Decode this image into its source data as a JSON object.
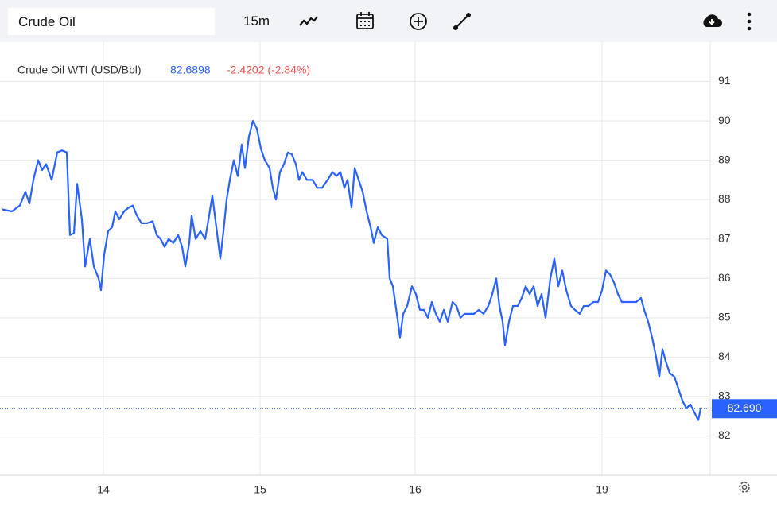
{
  "toolbar": {
    "search": "Crude Oil",
    "interval": "15m"
  },
  "chart_data": {
    "type": "line",
    "title": "Crude Oil WTI (USD/Bbl)",
    "last_price": "82.6898",
    "change": "-2.4202 (-2.84%)",
    "last_value": {
      "value": 82.69,
      "label": "82.690"
    },
    "xlim": [
      0,
      893
    ],
    "ylim": [
      81,
      92
    ],
    "xticks": [
      {
        "value": 130,
        "label": "14"
      },
      {
        "value": 327,
        "label": "15"
      },
      {
        "value": 522,
        "label": "16"
      },
      {
        "value": 757,
        "label": "19"
      }
    ],
    "yticks": [
      82,
      83,
      84,
      85,
      86,
      87,
      88,
      89,
      90,
      91
    ],
    "grid": true,
    "series": [
      {
        "color": "#2962ff",
        "x": [
          3,
          15,
          25,
          32,
          37,
          42,
          48,
          53,
          58,
          65,
          72,
          78,
          84,
          88,
          93,
          97,
          103,
          107,
          113,
          118,
          124,
          127,
          131,
          136,
          141,
          145,
          150,
          156,
          162,
          167,
          172,
          178,
          185,
          192,
          197,
          202,
          207,
          212,
          218,
          224,
          229,
          233,
          238,
          241,
          246,
          252,
          258,
          263,
          267,
          272,
          277,
          281,
          285,
          289,
          294,
          299,
          304,
          308,
          313,
          318,
          323,
          328,
          333,
          339,
          343,
          347,
          352,
          357,
          362,
          367,
          372,
          376,
          380,
          386,
          393,
          399,
          405,
          412,
          418,
          423,
          428,
          433,
          437,
          442,
          446,
          451,
          456,
          461,
          466,
          470,
          475,
          480,
          487,
          490,
          494,
          499,
          503,
          507,
          512,
          518,
          523,
          528,
          533,
          538,
          543,
          548,
          553,
          558,
          563,
          569,
          574,
          579,
          584,
          590,
          596,
          602,
          608,
          614,
          619,
          624,
          628,
          632,
          635,
          640,
          645,
          651,
          656,
          661,
          666,
          671,
          676,
          681,
          686,
          692,
          697,
          702,
          707,
          712,
          718,
          723,
          729,
          734,
          740,
          746,
          752,
          757,
          762,
          767,
          772,
          777,
          782,
          788,
          794,
          800,
          806,
          810,
          815,
          820,
          825,
          829,
          833,
          837,
          842,
          848,
          853,
          858,
          863,
          868,
          873,
          878,
          881
        ],
        "values": [
          87.75,
          87.7,
          87.85,
          88.2,
          87.9,
          88.5,
          89.0,
          88.75,
          88.9,
          88.5,
          89.2,
          89.25,
          89.2,
          87.1,
          87.15,
          88.4,
          87.5,
          86.3,
          87.0,
          86.3,
          86.0,
          85.7,
          86.6,
          87.2,
          87.3,
          87.7,
          87.5,
          87.7,
          87.8,
          87.85,
          87.6,
          87.4,
          87.4,
          87.45,
          87.1,
          87.0,
          86.8,
          87.0,
          86.9,
          87.1,
          86.8,
          86.3,
          86.9,
          87.6,
          87.0,
          87.2,
          87.0,
          87.6,
          88.1,
          87.3,
          86.5,
          87.2,
          88.0,
          88.5,
          89.0,
          88.6,
          89.4,
          88.8,
          89.6,
          90.0,
          89.8,
          89.3,
          89.0,
          88.8,
          88.3,
          88.0,
          88.7,
          88.9,
          89.2,
          89.15,
          88.9,
          88.5,
          88.7,
          88.5,
          88.5,
          88.3,
          88.3,
          88.5,
          88.7,
          88.6,
          88.7,
          88.3,
          88.5,
          87.8,
          88.8,
          88.5,
          88.2,
          87.7,
          87.3,
          86.9,
          87.3,
          87.1,
          87.0,
          86.0,
          85.8,
          85.1,
          84.5,
          85.1,
          85.3,
          85.8,
          85.6,
          85.2,
          85.2,
          85.0,
          85.4,
          85.1,
          84.9,
          85.2,
          84.9,
          85.4,
          85.3,
          85.0,
          85.1,
          85.1,
          85.1,
          85.2,
          85.1,
          85.3,
          85.6,
          86.0,
          85.3,
          84.9,
          84.3,
          84.9,
          85.3,
          85.3,
          85.5,
          85.8,
          85.6,
          85.8,
          85.3,
          85.6,
          85.0,
          86.0,
          86.5,
          85.8,
          86.2,
          85.7,
          85.3,
          85.2,
          85.1,
          85.3,
          85.3,
          85.4,
          85.4,
          85.7,
          86.2,
          86.1,
          85.9,
          85.6,
          85.4,
          85.4,
          85.4,
          85.4,
          85.5,
          85.2,
          84.9,
          84.5,
          84.0,
          83.5,
          84.2,
          83.9,
          83.6,
          83.5,
          83.2,
          82.9,
          82.7,
          82.8,
          82.6,
          82.4,
          82.69
        ]
      }
    ]
  }
}
